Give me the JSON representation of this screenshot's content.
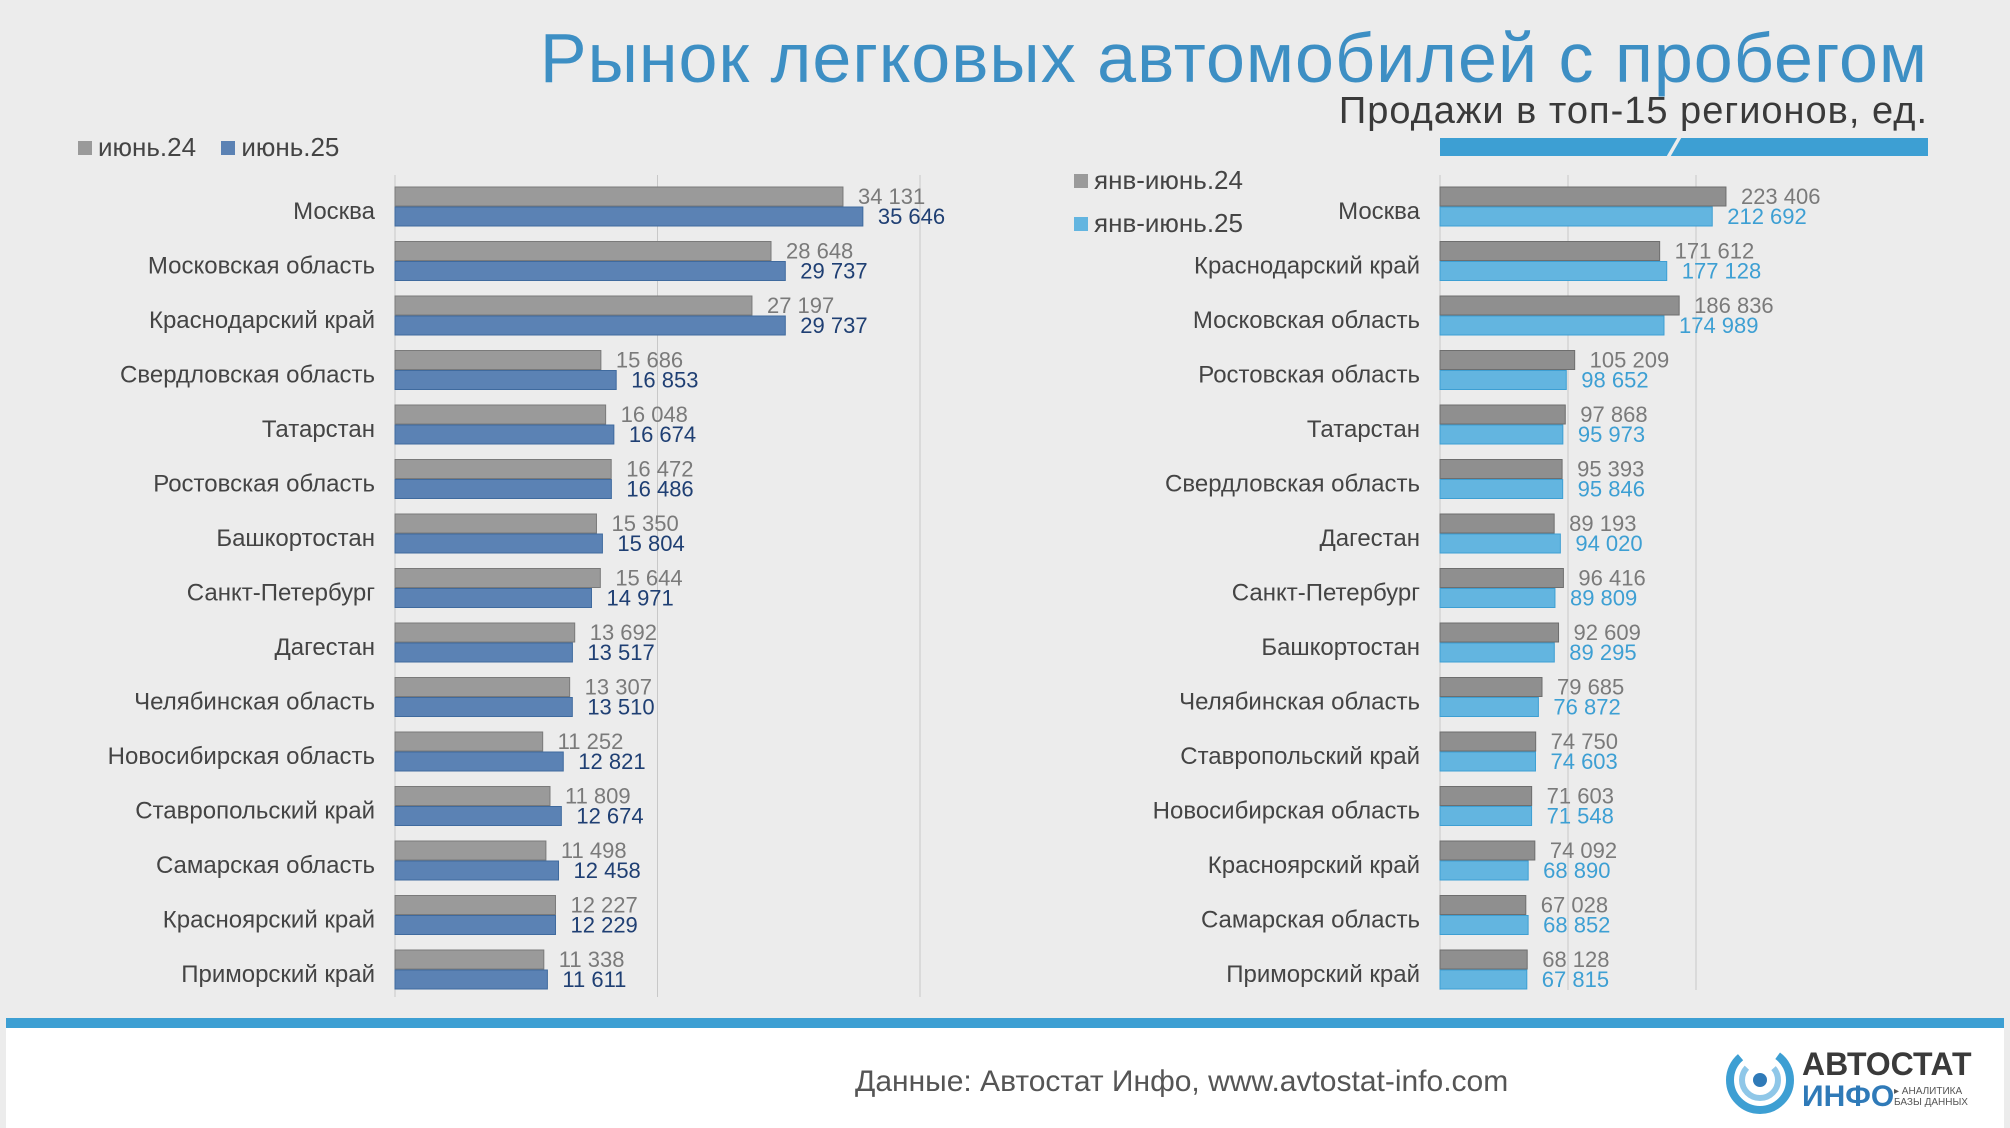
{
  "title": "Рынок легковых автомобилей с пробегом",
  "subtitle": "Продажи в топ-15 регионов, ед.",
  "footer": {
    "source": "Данные: Автостат Инфо, www.avtostat-info.com",
    "logo_top": "АВТОСТАТ",
    "logo_bottom": "ИНФО",
    "logo_tagline": "▸ АНАЛИТИКА БАЗЫ ДАННЫХ"
  },
  "colors": {
    "accent": "#3d9fd3",
    "gray_bar": "#9a9a9a",
    "dark_blue_bar": "#5b82b4",
    "light_blue_bar": "#63b5e0"
  },
  "chart_data": [
    {
      "type": "bar",
      "orientation": "horizontal",
      "legend": "top-left",
      "categories": [
        "Москва",
        "Московская область",
        "Краснодарский край",
        "Свердловская область",
        "Татарстан",
        "Ростовская область",
        "Башкортостан",
        "Санкт-Петербург",
        "Дагестан",
        "Челябинская область",
        "Новосибирская область",
        "Ставропольский край",
        "Самарская область",
        "Красноярский край",
        "Приморский край"
      ],
      "series": [
        {
          "name": "июнь.24",
          "values": [
            34131,
            28648,
            27197,
            15686,
            16048,
            16472,
            15350,
            15644,
            13692,
            13307,
            11252,
            11809,
            11498,
            12227,
            11338
          ],
          "labels": [
            "34 131",
            "28 648",
            "27 197",
            "15 686",
            "16 048",
            "16 472",
            "15 350",
            "15 644",
            "13 692",
            "13 307",
            "11 252",
            "11 809",
            "11 498",
            "12 227",
            "11 338"
          ]
        },
        {
          "name": "июнь.25",
          "values": [
            35646,
            29737,
            29737,
            16853,
            16674,
            16486,
            15804,
            14971,
            13517,
            13510,
            12821,
            12674,
            12458,
            12229,
            11611
          ],
          "labels": [
            "35 646",
            "29 737",
            "29 737",
            "16 853",
            "16 674",
            "16 486",
            "15 804",
            "14 971",
            "13 517",
            "13 510",
            "12 821",
            "12 674",
            "12 458",
            "12 229",
            "11 611"
          ]
        }
      ],
      "xlim": [
        0,
        40000
      ],
      "grid": true
    },
    {
      "type": "bar",
      "orientation": "horizontal",
      "legend": "top-left",
      "categories": [
        "Москва",
        "Краснодарский край",
        "Московская область",
        "Ростовская область",
        "Татарстан",
        "Свердловская область",
        "Дагестан",
        "Санкт-Петербург",
        "Башкортостан",
        "Челябинская область",
        "Ставропольский край",
        "Новосибирская область",
        "Красноярский край",
        "Самарская область",
        "Приморский край"
      ],
      "series": [
        {
          "name": "янв-июнь.24",
          "values": [
            223406,
            171612,
            186836,
            105209,
            97868,
            95393,
            89193,
            96416,
            92609,
            79685,
            74750,
            71603,
            74092,
            67028,
            68128
          ],
          "labels": [
            "223 406",
            "171 612",
            "186 836",
            "105 209",
            "97 868",
            "95 393",
            "89 193",
            "96 416",
            "92 609",
            "79 685",
            "74 750",
            "71 603",
            "74 092",
            "67 028",
            "68 128"
          ]
        },
        {
          "name": "янв-июнь.25",
          "values": [
            212692,
            177128,
            174989,
            98652,
            95973,
            95846,
            94020,
            89809,
            89295,
            76872,
            74603,
            71548,
            68890,
            68852,
            67815
          ],
          "labels": [
            "212 692",
            "177 128",
            "174 989",
            "98 652",
            "95 973",
            "95 846",
            "94 020",
            "89 809",
            "89 295",
            "76 872",
            "74 603",
            "71 548",
            "68 890",
            "68 852",
            "67 815"
          ]
        }
      ],
      "xlim": [
        0,
        250000
      ],
      "grid": true
    }
  ]
}
